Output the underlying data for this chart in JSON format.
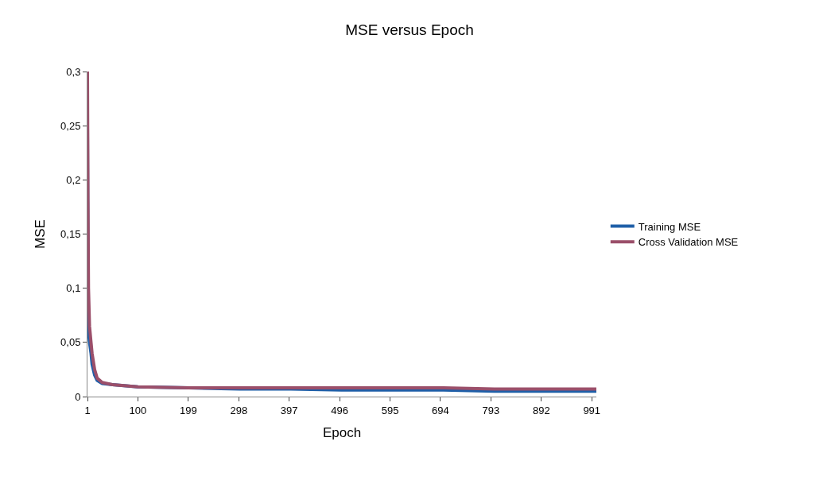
{
  "chart_data": {
    "type": "line",
    "title": "MSE versus Epoch",
    "xlabel": "Epoch",
    "ylabel": "MSE",
    "xlim": [
      1,
      1000
    ],
    "xticks": [
      1,
      100,
      199,
      298,
      397,
      496,
      595,
      694,
      793,
      892,
      991
    ],
    "ylim": [
      0,
      0.3
    ],
    "yticks": [
      0,
      {
        "value": 0.05,
        "label": "0,05"
      },
      {
        "value": 0.1,
        "label": "0,1"
      },
      {
        "value": 0.15,
        "label": "0,15"
      },
      {
        "value": 0.2,
        "label": "0,2"
      },
      {
        "value": 0.25,
        "label": "0,25"
      },
      {
        "value": 0.3,
        "label": "0,3"
      }
    ],
    "legend": "right",
    "marker": "none",
    "line_style": "solid",
    "series": [
      {
        "name": "Training MSE",
        "color": "#1f5fa8",
        "x": [
          1,
          2,
          3,
          5,
          8,
          10,
          15,
          20,
          30,
          50,
          100,
          200,
          300,
          400,
          500,
          600,
          700,
          800,
          900,
          1000
        ],
        "values": [
          0.25,
          0.12,
          0.06,
          0.05,
          0.04,
          0.03,
          0.02,
          0.015,
          0.012,
          0.011,
          0.009,
          0.008,
          0.007,
          0.007,
          0.006,
          0.006,
          0.006,
          0.005,
          0.005,
          0.005
        ]
      },
      {
        "name": "Cross Validation MSE",
        "color": "#9b4f6a",
        "x": [
          1,
          2,
          3,
          5,
          8,
          10,
          15,
          20,
          30,
          50,
          100,
          200,
          300,
          400,
          500,
          600,
          700,
          800,
          900,
          1000
        ],
        "values": [
          0.3,
          0.18,
          0.1,
          0.065,
          0.05,
          0.04,
          0.025,
          0.017,
          0.013,
          0.011,
          0.009,
          0.008,
          0.008,
          0.008,
          0.008,
          0.008,
          0.008,
          0.007,
          0.007,
          0.007
        ]
      }
    ]
  }
}
